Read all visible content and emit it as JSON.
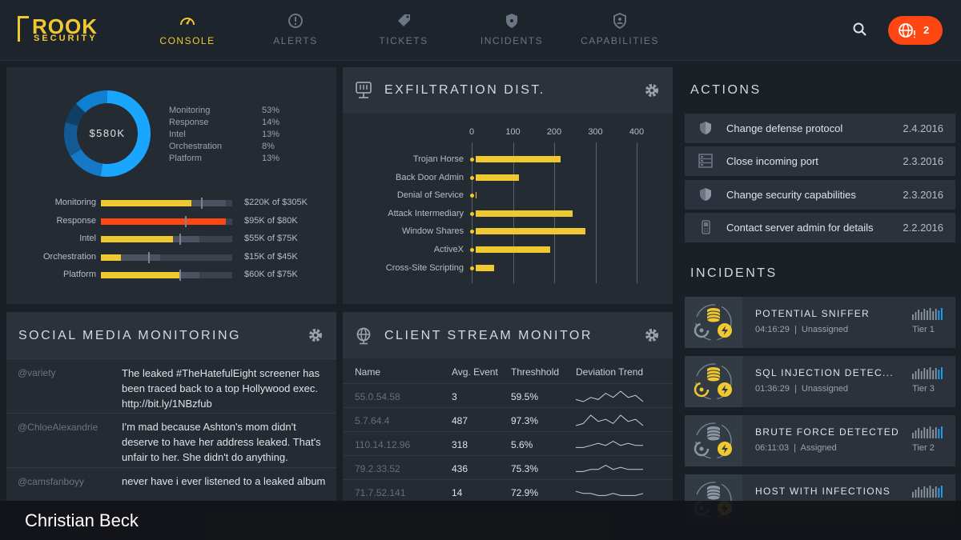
{
  "app": {
    "brand_main": "ROOK",
    "brand_sub": "SECURITY"
  },
  "nav": [
    {
      "label": "CONSOLE",
      "icon": "gauge-icon",
      "active": true
    },
    {
      "label": "ALERTS",
      "icon": "exclamation-circle-icon"
    },
    {
      "label": "TICKETS",
      "icon": "tag-icon"
    },
    {
      "label": "INCIDENTS",
      "icon": "shield-icon"
    },
    {
      "label": "CAPABILITIES",
      "icon": "badge-icon"
    }
  ],
  "alert_badge": {
    "count": "2"
  },
  "budget": {
    "total": "$580K",
    "legend": [
      {
        "name": "Monitoring",
        "pct": "53%",
        "share": 53,
        "color": "#1aa6ff"
      },
      {
        "name": "Response",
        "pct": "14%",
        "share": 14,
        "color": "#1679c8"
      },
      {
        "name": "Intel",
        "pct": "13%",
        "share": 13,
        "color": "#135a95"
      },
      {
        "name": "Orchestration",
        "pct": "8%",
        "share": 8,
        "color": "#103f66"
      },
      {
        "name": "Platform",
        "pct": "13%",
        "share": 13,
        "color": "#0f7fd0"
      }
    ],
    "bars": [
      {
        "name": "Monitoring",
        "value": "$220K of $305K",
        "spent": 220,
        "budget": 305,
        "color": "#f0c830"
      },
      {
        "name": "Response",
        "value": "$95K of $80K",
        "spent": 95,
        "budget": 80,
        "color": "#ff4713"
      },
      {
        "name": "Intel",
        "value": "$55K of $75K",
        "spent": 55,
        "budget": 75,
        "color": "#f0c830"
      },
      {
        "name": "Orchestration",
        "value": "$15K of $45K",
        "spent": 15,
        "budget": 45,
        "color": "#f0c830"
      },
      {
        "name": "Platform",
        "value": "$60K of $75K",
        "spent": 60,
        "budget": 75,
        "color": "#f0c830"
      }
    ]
  },
  "exfil": {
    "title": "EXFILTRATION DIST.",
    "chart_data": {
      "type": "bar",
      "orientation": "horizontal",
      "categories": [
        "Trojan Horse",
        "Back Door Admin",
        "Denial of Service",
        "Attack Intermediary",
        "Window Shares",
        "ActiveX",
        "Cross-Site Scripting"
      ],
      "values": [
        215,
        115,
        10,
        245,
        275,
        190,
        55
      ],
      "xlim": [
        0,
        400
      ],
      "xticks": [
        "0",
        "100",
        "200",
        "300",
        "400"
      ],
      "grid": true
    }
  },
  "social": {
    "title": "SOCIAL MEDIA MONITORING",
    "rows": [
      {
        "user": "@variety",
        "text": "The leaked #TheHatefulEight screener has been traced back to a top Hollywood exec. http://bit.ly/1NBzfub"
      },
      {
        "user": "@ChloeAlexandrie",
        "text": "I'm mad because Ashton's mom didn't deserve to have her address leaked. That's unfair to her. She didn't do anything."
      },
      {
        "user": "@camsfanboyy",
        "text": "never have i ever listened to a leaked album"
      }
    ]
  },
  "stream": {
    "title": "CLIENT STREAM MONITOR",
    "headers": [
      "Name",
      "Avg. Event",
      "Threshhold",
      "Deviation Trend"
    ],
    "rows": [
      {
        "name": "55.0.54.58",
        "avg": "3",
        "threshold": "59.5%",
        "trend": [
          4,
          5,
          3,
          4,
          1,
          3,
          0,
          3,
          2,
          5
        ]
      },
      {
        "name": "5.7.64.4",
        "avg": "487",
        "threshold": "97.3%",
        "trend": [
          5,
          4,
          0,
          3,
          2,
          4,
          0,
          3,
          2,
          5
        ]
      },
      {
        "name": "110.14.12.96",
        "avg": "318",
        "threshold": "5.6%",
        "trend": [
          4,
          4,
          3,
          2,
          3,
          1,
          3,
          2,
          3,
          3
        ]
      },
      {
        "name": "79.2.33.52",
        "avg": "436",
        "threshold": "75.3%",
        "trend": [
          4,
          4,
          3,
          3,
          1,
          3,
          2,
          3,
          3,
          3
        ]
      },
      {
        "name": "71.7.52.141",
        "avg": "14",
        "threshold": "72.9%",
        "trend": [
          2,
          3,
          3,
          4,
          4,
          3,
          4,
          4,
          4,
          3
        ]
      }
    ]
  },
  "actions": {
    "title": "ACTIONS",
    "rows": [
      {
        "text": "Change defense protocol",
        "date": "2.4.2016",
        "icon": "shield-icon"
      },
      {
        "text": "Close incoming port",
        "date": "2.3.2016",
        "icon": "server-icon"
      },
      {
        "text": "Change security capabilities",
        "date": "2.3.2016",
        "icon": "shield-icon"
      },
      {
        "text": "Contact server admin for details",
        "date": "2.2.2016",
        "icon": "phone-icon"
      }
    ]
  },
  "incidents": {
    "title": "INCIDENTS",
    "rows": [
      {
        "title": "POTENTIAL SNIFFER",
        "time": "04:16:29",
        "status": "Unassigned",
        "tier": "Tier 1",
        "icon": "database-icon",
        "color": "#f0c830"
      },
      {
        "title": "SQL INJECTION DETEC...",
        "time": "01:36:29",
        "status": "Unassigned",
        "tier": "Tier 3",
        "icon": "database-icon",
        "color": "#f0c830"
      },
      {
        "title": "BRUTE FORCE DETECTED",
        "time": "06:11:03",
        "status": "Assigned",
        "tier": "Tier 2",
        "icon": "database-icon",
        "color": "#8d96a3"
      },
      {
        "title": "HOST WITH INFECTIONS",
        "time": "",
        "status": "",
        "tier": "",
        "icon": "database-icon",
        "color": "#8d96a3"
      }
    ]
  },
  "footer": {
    "name": "Christian Beck"
  }
}
